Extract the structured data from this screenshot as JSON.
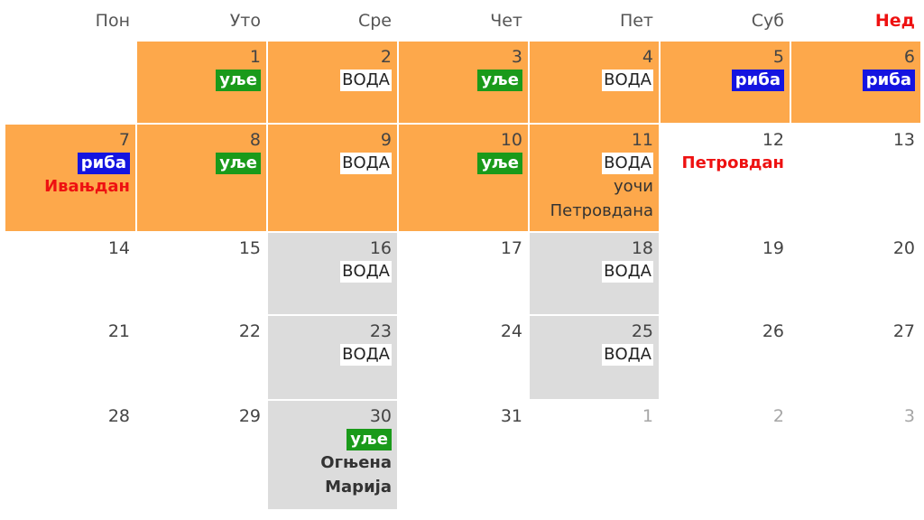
{
  "calendar": {
    "weekdays": [
      "Пон",
      "Уто",
      "Сре",
      "Чет",
      "Пет",
      "Суб",
      "Нед"
    ],
    "rows": [
      [
        {
          "blank": true
        },
        {
          "day": "1",
          "bg": "o",
          "tags": [
            {
              "kind": "ulje",
              "text": "уље"
            }
          ]
        },
        {
          "day": "2",
          "bg": "o",
          "tags": [
            {
              "kind": "voda",
              "text": "ВОДА"
            }
          ]
        },
        {
          "day": "3",
          "bg": "o",
          "tags": [
            {
              "kind": "ulje",
              "text": "уље"
            }
          ]
        },
        {
          "day": "4",
          "bg": "o",
          "tags": [
            {
              "kind": "voda",
              "text": "ВОДА"
            }
          ]
        },
        {
          "day": "5",
          "bg": "o",
          "tags": [
            {
              "kind": "riba",
              "text": "риба"
            }
          ]
        },
        {
          "day": "6",
          "bg": "o",
          "tags": [
            {
              "kind": "riba",
              "text": "риба"
            }
          ]
        }
      ],
      [
        {
          "day": "7",
          "bg": "o",
          "tags": [
            {
              "kind": "riba",
              "text": "риба"
            }
          ],
          "notes": [
            {
              "kind": "holiday",
              "text": "Ивањдан"
            }
          ]
        },
        {
          "day": "8",
          "bg": "o",
          "tags": [
            {
              "kind": "ulje",
              "text": "уље"
            }
          ]
        },
        {
          "day": "9",
          "bg": "o",
          "tags": [
            {
              "kind": "voda",
              "text": "ВОДА"
            }
          ]
        },
        {
          "day": "10",
          "bg": "o",
          "tags": [
            {
              "kind": "ulje",
              "text": "уље"
            }
          ]
        },
        {
          "day": "11",
          "bg": "o",
          "tags": [
            {
              "kind": "voda",
              "text": "ВОДА"
            }
          ],
          "notes": [
            {
              "kind": "plain",
              "text": "уочи"
            },
            {
              "kind": "plain",
              "text": "Петровдана"
            }
          ]
        },
        {
          "day": "12",
          "bg": "w",
          "notes": [
            {
              "kind": "holiday",
              "text": "Петровдан"
            }
          ]
        },
        {
          "day": "13",
          "bg": "w"
        }
      ],
      [
        {
          "day": "14",
          "bg": "w"
        },
        {
          "day": "15",
          "bg": "w"
        },
        {
          "day": "16",
          "bg": "g",
          "tags": [
            {
              "kind": "voda",
              "text": "ВОДА"
            }
          ]
        },
        {
          "day": "17",
          "bg": "w"
        },
        {
          "day": "18",
          "bg": "g",
          "tags": [
            {
              "kind": "voda",
              "text": "ВОДА"
            }
          ]
        },
        {
          "day": "19",
          "bg": "w"
        },
        {
          "day": "20",
          "bg": "w"
        }
      ],
      [
        {
          "day": "21",
          "bg": "w"
        },
        {
          "day": "22",
          "bg": "w"
        },
        {
          "day": "23",
          "bg": "g",
          "tags": [
            {
              "kind": "voda",
              "text": "ВОДА"
            }
          ]
        },
        {
          "day": "24",
          "bg": "w"
        },
        {
          "day": "25",
          "bg": "g",
          "tags": [
            {
              "kind": "voda",
              "text": "ВОДА"
            }
          ]
        },
        {
          "day": "26",
          "bg": "w"
        },
        {
          "day": "27",
          "bg": "w"
        }
      ],
      [
        {
          "day": "28",
          "bg": "w"
        },
        {
          "day": "29",
          "bg": "w"
        },
        {
          "day": "30",
          "bg": "g",
          "tags": [
            {
              "kind": "ulje",
              "text": "уље"
            }
          ],
          "notes": [
            {
              "kind": "saint",
              "text": "Огњена"
            },
            {
              "kind": "saint",
              "text": "Марија"
            }
          ]
        },
        {
          "day": "31",
          "bg": "w"
        },
        {
          "day": "1",
          "bg": "w",
          "other": true
        },
        {
          "day": "2",
          "bg": "w",
          "other": true
        },
        {
          "day": "3",
          "bg": "w",
          "other": true
        }
      ]
    ]
  },
  "colors": {
    "fast_orange": "#fda84b",
    "water_gray": "#dcdcdc",
    "oil_green": "#1a9a1a",
    "fish_blue": "#1414e0",
    "holiday_red": "#ee1111"
  }
}
